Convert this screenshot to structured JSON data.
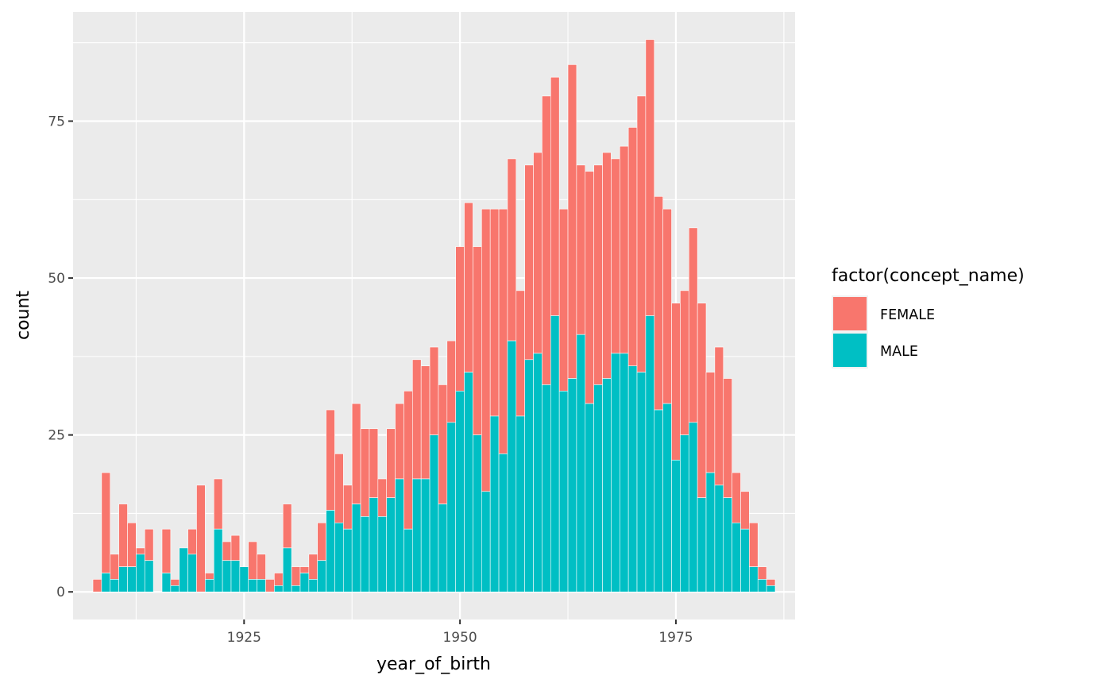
{
  "chart_data": {
    "type": "bar",
    "stacked": true,
    "xlabel": "year_of_birth",
    "ylabel": "count",
    "x_ticks": [
      1925,
      1950,
      1975
    ],
    "y_ticks": [
      0,
      25,
      50,
      75
    ],
    "xlim": [
      1905.2,
      1988.8
    ],
    "ylim": [
      -4.4,
      92.4
    ],
    "grid": true,
    "legend": {
      "title": "factor(concept_name)",
      "position": "right",
      "entries": [
        {
          "label": "FEMALE",
          "color": "#F8766D"
        },
        {
          "label": "MALE",
          "color": "#00BFC4"
        }
      ]
    },
    "x": [
      1908,
      1909,
      1910,
      1911,
      1912,
      1913,
      1914,
      1915,
      1916,
      1917,
      1918,
      1919,
      1920,
      1921,
      1922,
      1923,
      1924,
      1925,
      1926,
      1927,
      1928,
      1929,
      1930,
      1931,
      1932,
      1933,
      1934,
      1935,
      1936,
      1937,
      1938,
      1939,
      1940,
      1941,
      1942,
      1943,
      1944,
      1945,
      1946,
      1947,
      1948,
      1949,
      1950,
      1951,
      1952,
      1953,
      1954,
      1955,
      1956,
      1957,
      1958,
      1959,
      1960,
      1961,
      1962,
      1963,
      1964,
      1965,
      1966,
      1967,
      1968,
      1969,
      1970,
      1971,
      1972,
      1973,
      1974,
      1975,
      1976,
      1977,
      1978,
      1979,
      1980,
      1981,
      1982,
      1983,
      1984,
      1985,
      1986
    ],
    "series": [
      {
        "name": "MALE",
        "color": "#00BFC4",
        "values": [
          0,
          3,
          2,
          4,
          4,
          6,
          5,
          0,
          3,
          1,
          7,
          6,
          0,
          2,
          10,
          5,
          5,
          4,
          2,
          2,
          0,
          1,
          7,
          1,
          3,
          2,
          5,
          13,
          11,
          10,
          14,
          12,
          15,
          12,
          15,
          18,
          10,
          18,
          18,
          25,
          14,
          27,
          32,
          35,
          25,
          16,
          28,
          22,
          40,
          28,
          37,
          38,
          33,
          44,
          32,
          34,
          41,
          30,
          33,
          34,
          38,
          38,
          36,
          35,
          44,
          29,
          30,
          21,
          25,
          27,
          15,
          19,
          17,
          15,
          11,
          10,
          4,
          2,
          1
        ]
      },
      {
        "name": "FEMALE",
        "color": "#F8766D",
        "values": [
          2,
          16,
          4,
          10,
          7,
          1,
          5,
          0,
          7,
          1,
          0,
          4,
          17,
          1,
          8,
          3,
          4,
          0,
          6,
          4,
          2,
          2,
          7,
          3,
          1,
          4,
          6,
          16,
          11,
          7,
          16,
          14,
          11,
          6,
          11,
          12,
          22,
          19,
          18,
          14,
          19,
          13,
          23,
          27,
          30,
          45,
          33,
          39,
          29,
          20,
          31,
          32,
          46,
          38,
          29,
          50,
          27,
          37,
          35,
          36,
          31,
          33,
          38,
          44,
          44,
          34,
          31,
          25,
          23,
          31,
          31,
          16,
          22,
          19,
          8,
          6,
          7,
          2,
          1
        ]
      }
    ]
  }
}
